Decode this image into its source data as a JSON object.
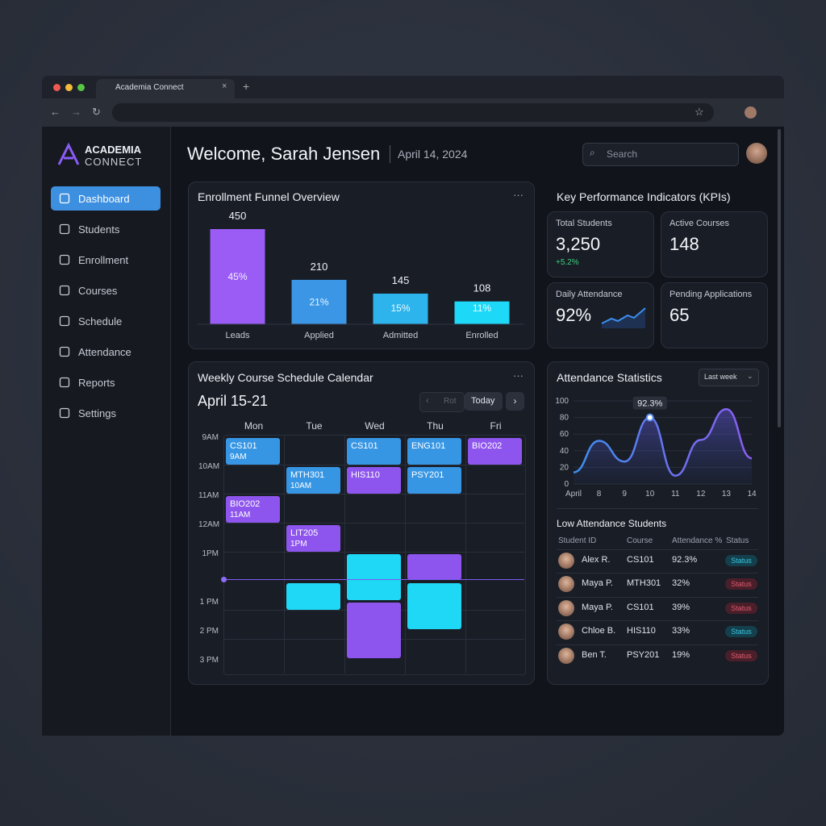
{
  "browser": {
    "tab_title": "Academia Connect"
  },
  "sidebar": {
    "brand": [
      "ACADEMIA",
      "CONNECT"
    ],
    "nav": [
      "Dashboard",
      "Students",
      "Enrollment",
      "Courses",
      "Schedule",
      "Attendance",
      "Reports",
      "Settings"
    ]
  },
  "header": {
    "title": "Welcome, Sarah Jensen",
    "date": "April 14, 2024",
    "search": "Search"
  },
  "chart_data": [
    {
      "type": "bar",
      "title": "Enrollment Funnel Overview",
      "categories": [
        "Leads",
        "Applied",
        "Admitted",
        "Enrolled"
      ],
      "values": [
        450,
        210,
        145,
        108
      ],
      "share_labels": [
        "45%",
        "21%",
        "15%",
        "11%"
      ],
      "colors": [
        "#9a5cf5",
        "#3b97e6",
        "#2db4ec",
        "#1ed8f8"
      ]
    },
    {
      "type": "line",
      "title": "Attendance Statistics",
      "filter": "Last week",
      "categories": [
        "April",
        "8",
        "9",
        "10",
        "11",
        "12",
        "13",
        "14"
      ],
      "values": [
        14,
        52,
        27,
        80,
        10,
        53,
        90,
        31
      ],
      "ylim": [
        0,
        100
      ],
      "yticks": [
        0,
        20,
        40,
        60,
        80,
        100
      ],
      "grid": true,
      "annotation": "92.3%",
      "color": "#5b8cf0"
    }
  ],
  "kpis": {
    "title": "Key Performance Indicators (KPIs)",
    "cards": [
      {
        "label": "Total Students",
        "value": "3,250",
        "delta": "+5.2%"
      },
      {
        "label": "Active Courses",
        "value": "148"
      },
      {
        "label": "Daily Attendance",
        "value": "92%"
      },
      {
        "label": "Pending Applications",
        "value": "65"
      }
    ]
  },
  "schedule": {
    "title": "Weekly Course Schedule Calendar",
    "range": "April 15-21",
    "prev": "Rot",
    "today": "Today",
    "days": [
      "Mon",
      "Tue",
      "Wed",
      "Thu",
      "Fri"
    ],
    "times": [
      "9AM",
      "10AM",
      "11AM",
      "12AM",
      "1PM",
      "1 PM",
      "2 PM",
      "3 PM"
    ],
    "events": [
      {
        "code": "CS101",
        "time": "9AM"
      },
      {
        "code": "CS101"
      },
      {
        "code": "ENG101"
      },
      {
        "code": "BIO202"
      },
      {
        "code": "MTH301",
        "time": "10AM"
      },
      {
        "code": "HIS110"
      },
      {
        "code": "PSY201"
      },
      {
        "code": "BIO202",
        "time": "11AM"
      },
      {
        "code": "LIT205",
        "time": "1PM"
      }
    ]
  },
  "attendance_table": {
    "title": "Low Attendance Students",
    "columns": [
      "Student ID",
      "Course",
      "Attendance %",
      "Status"
    ],
    "rows": [
      [
        "Alex R.",
        "CS101",
        "92.3%",
        "Status"
      ],
      [
        "Maya P.",
        "MTH301",
        "32%",
        "Status"
      ],
      [
        "Maya P.",
        "CS101",
        "39%",
        "Status"
      ],
      [
        "Chloe B.",
        "HIS110",
        "33%",
        "Status"
      ],
      [
        "Ben T.",
        "PSY201",
        "19%",
        "Status"
      ]
    ]
  }
}
